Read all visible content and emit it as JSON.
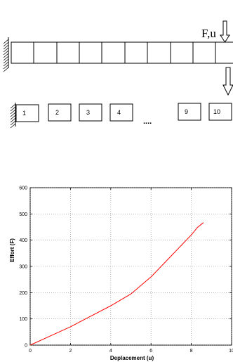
{
  "diagram": {
    "load_label": "F,u",
    "element_labels": [
      "1",
      "2",
      "3",
      "4",
      "9",
      "10"
    ],
    "ellipsis": "...."
  },
  "chart_data": {
    "type": "line",
    "title": "",
    "xlabel": "Deplacement (u)",
    "ylabel": "Effort (F)",
    "xlim": [
      0,
      10
    ],
    "ylim": [
      0,
      600
    ],
    "xticks": [
      "0",
      "2",
      "4",
      "6",
      "8",
      "10"
    ],
    "yticks": [
      "0",
      "100",
      "200",
      "300",
      "400",
      "500",
      "600"
    ],
    "grid": true,
    "series": [
      {
        "color": "#ff0000",
        "x": [
          0,
          1,
          2,
          3,
          4,
          5,
          6,
          7,
          7.5,
          8,
          8.3,
          8.6
        ],
        "y": [
          0,
          35,
          70,
          110,
          150,
          195,
          260,
          340,
          380,
          420,
          448,
          467
        ]
      }
    ]
  }
}
